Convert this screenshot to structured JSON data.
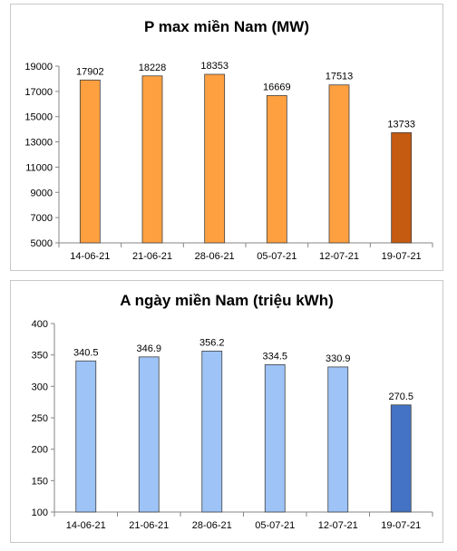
{
  "chart_data": [
    {
      "type": "bar",
      "title": "P max miền Nam (MW)",
      "categories": [
        "14-06-21",
        "21-06-21",
        "28-06-21",
        "05-07-21",
        "12-07-21",
        "19-07-21"
      ],
      "values": [
        17902,
        18228,
        18353,
        16669,
        17513,
        13733
      ],
      "ylim": [
        5000,
        19000
      ],
      "yticks": [
        5000,
        7000,
        9000,
        11000,
        13000,
        15000,
        17000,
        19000
      ],
      "bar_color": "#FFA040",
      "highlight_color": "#C55A11",
      "grid": false
    },
    {
      "type": "bar",
      "title": "A ngày miền Nam (triệu kWh)",
      "categories": [
        "14-06-21",
        "21-06-21",
        "28-06-21",
        "05-07-21",
        "12-07-21",
        "19-07-21"
      ],
      "values": [
        340.5,
        346.9,
        356.2,
        334.5,
        330.9,
        270.5
      ],
      "ylim": [
        100,
        400
      ],
      "yticks": [
        100,
        150,
        200,
        250,
        300,
        350,
        400
      ],
      "bar_color": "#9DC3F7",
      "highlight_color": "#4472C4",
      "grid": false
    }
  ]
}
